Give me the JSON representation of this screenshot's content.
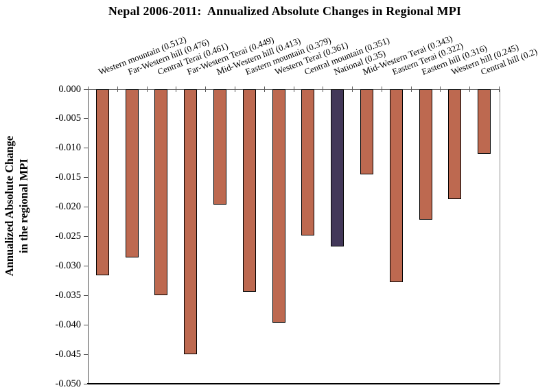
{
  "chart_data": {
    "type": "bar",
    "title": "Nepal 2006-2011:  Annualized Absolute Changes in Regional MPI",
    "ylabel": "Annualized Absolute Change in the regional MPI",
    "ylabel_lines": [
      "Annualized Absolute Change",
      "in the regional MPI"
    ],
    "xlabel": "",
    "categories": [
      "Western mountain (0.512)",
      "Far-Western hill (0.476)",
      "Central Terai (0.461)",
      "Far-Western Terai (0.449)",
      "Mid-Western hill (0.413)",
      "Eastern mountain (0.379)",
      "Western Terai (0.361)",
      "Central mountain (0.351)",
      "National (0.35)",
      "Mid-Western Terai (0.343)",
      "Eastern Terai (0.322)",
      "Eastern hill (0.316)",
      "Western hill (0.245)",
      "Central hill (0.2)"
    ],
    "values": [
      -0.0316,
      -0.0285,
      -0.035,
      -0.045,
      -0.0196,
      -0.0344,
      -0.0396,
      -0.0248,
      -0.0267,
      -0.0145,
      -0.0327,
      -0.0222,
      -0.0186,
      -0.011
    ],
    "highlight": {
      "index": 8,
      "category": "National (0.35)",
      "color": "#423759"
    },
    "bar_color": "#bd6950",
    "bar_border_color": "#000000",
    "ylim": [
      -0.05,
      0.0
    ],
    "ytick_step": 0.005,
    "ytick_labels": [
      "0.000",
      "-0.005",
      "-0.010",
      "-0.015",
      "-0.020",
      "-0.025",
      "-0.030",
      "-0.035",
      "-0.040",
      "-0.045",
      "-0.050"
    ],
    "grid": false,
    "legend": "none"
  }
}
